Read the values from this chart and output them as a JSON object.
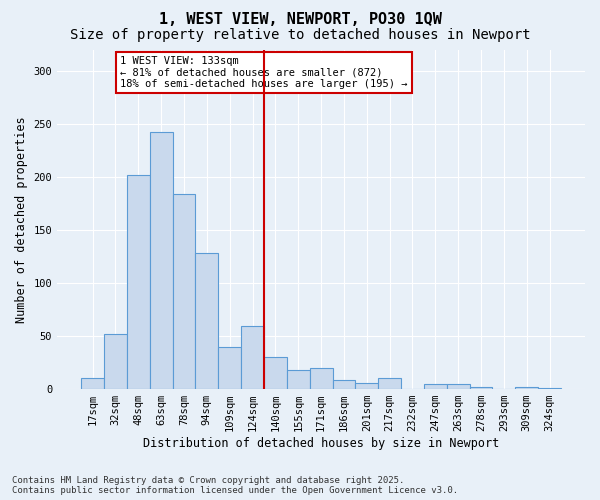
{
  "title": "1, WEST VIEW, NEWPORT, PO30 1QW",
  "subtitle": "Size of property relative to detached houses in Newport",
  "xlabel": "Distribution of detached houses by size in Newport",
  "ylabel": "Number of detached properties",
  "footnote": "Contains HM Land Registry data © Crown copyright and database right 2025.\nContains public sector information licensed under the Open Government Licence v3.0.",
  "bar_labels": [
    "17sqm",
    "32sqm",
    "48sqm",
    "63sqm",
    "78sqm",
    "94sqm",
    "109sqm",
    "124sqm",
    "140sqm",
    "155sqm",
    "171sqm",
    "186sqm",
    "201sqm",
    "217sqm",
    "232sqm",
    "247sqm",
    "263sqm",
    "278sqm",
    "293sqm",
    "309sqm",
    "324sqm"
  ],
  "bar_values": [
    10,
    52,
    202,
    243,
    184,
    128,
    40,
    60,
    30,
    18,
    20,
    9,
    6,
    10,
    0,
    5,
    5,
    2,
    0,
    2,
    1
  ],
  "bar_color": "#c9d9ed",
  "bar_edge_color": "#5b9bd5",
  "vline_pos": 7.5,
  "vline_color": "#cc0000",
  "annotation_text": "1 WEST VIEW: 133sqm\n← 81% of detached houses are smaller (872)\n18% of semi-detached houses are larger (195) →",
  "annotation_box_color": "#cc0000",
  "bg_color": "#e8f0f8",
  "plot_bg_color": "#e8f0f8",
  "grid_color": "#ffffff",
  "ylim": [
    0,
    320
  ],
  "yticks": [
    0,
    50,
    100,
    150,
    200,
    250,
    300
  ],
  "title_fontsize": 11,
  "subtitle_fontsize": 10,
  "label_fontsize": 8.5,
  "tick_fontsize": 7.5,
  "footnote_fontsize": 6.5
}
